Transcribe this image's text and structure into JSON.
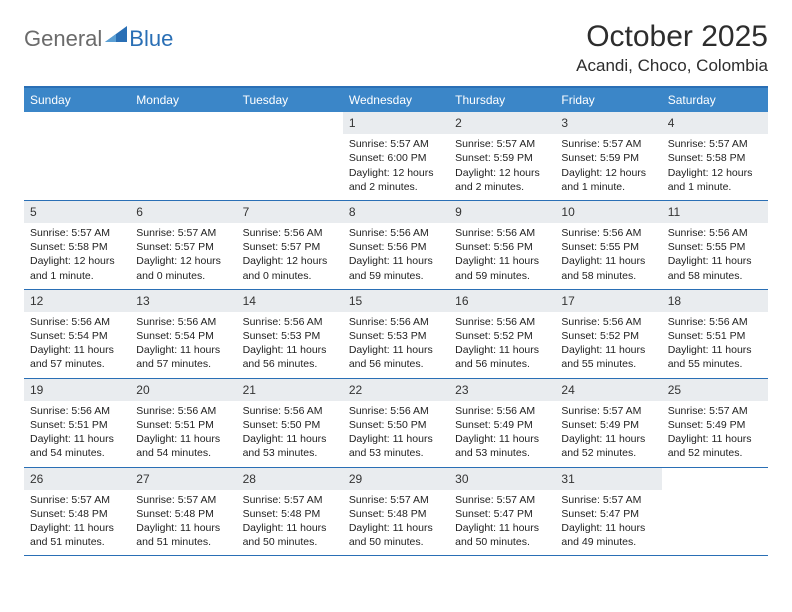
{
  "logo": {
    "general": "General",
    "blue": "Blue"
  },
  "title": "October 2025",
  "location": "Acandi, Choco, Colombia",
  "colors": {
    "header_bg": "#3b86c8",
    "border": "#2a6fb5",
    "daynum_bg": "#e9ecef",
    "text": "#222222"
  },
  "dayHeaders": [
    "Sunday",
    "Monday",
    "Tuesday",
    "Wednesday",
    "Thursday",
    "Friday",
    "Saturday"
  ],
  "weeks": [
    [
      {
        "blank": true
      },
      {
        "blank": true
      },
      {
        "blank": true
      },
      {
        "num": "1",
        "sunrise": "5:57 AM",
        "sunset": "6:00 PM",
        "daylight": "12 hours and 2 minutes."
      },
      {
        "num": "2",
        "sunrise": "5:57 AM",
        "sunset": "5:59 PM",
        "daylight": "12 hours and 2 minutes."
      },
      {
        "num": "3",
        "sunrise": "5:57 AM",
        "sunset": "5:59 PM",
        "daylight": "12 hours and 1 minute."
      },
      {
        "num": "4",
        "sunrise": "5:57 AM",
        "sunset": "5:58 PM",
        "daylight": "12 hours and 1 minute."
      }
    ],
    [
      {
        "num": "5",
        "sunrise": "5:57 AM",
        "sunset": "5:58 PM",
        "daylight": "12 hours and 1 minute."
      },
      {
        "num": "6",
        "sunrise": "5:57 AM",
        "sunset": "5:57 PM",
        "daylight": "12 hours and 0 minutes."
      },
      {
        "num": "7",
        "sunrise": "5:56 AM",
        "sunset": "5:57 PM",
        "daylight": "12 hours and 0 minutes."
      },
      {
        "num": "8",
        "sunrise": "5:56 AM",
        "sunset": "5:56 PM",
        "daylight": "11 hours and 59 minutes."
      },
      {
        "num": "9",
        "sunrise": "5:56 AM",
        "sunset": "5:56 PM",
        "daylight": "11 hours and 59 minutes."
      },
      {
        "num": "10",
        "sunrise": "5:56 AM",
        "sunset": "5:55 PM",
        "daylight": "11 hours and 58 minutes."
      },
      {
        "num": "11",
        "sunrise": "5:56 AM",
        "sunset": "5:55 PM",
        "daylight": "11 hours and 58 minutes."
      }
    ],
    [
      {
        "num": "12",
        "sunrise": "5:56 AM",
        "sunset": "5:54 PM",
        "daylight": "11 hours and 57 minutes."
      },
      {
        "num": "13",
        "sunrise": "5:56 AM",
        "sunset": "5:54 PM",
        "daylight": "11 hours and 57 minutes."
      },
      {
        "num": "14",
        "sunrise": "5:56 AM",
        "sunset": "5:53 PM",
        "daylight": "11 hours and 56 minutes."
      },
      {
        "num": "15",
        "sunrise": "5:56 AM",
        "sunset": "5:53 PM",
        "daylight": "11 hours and 56 minutes."
      },
      {
        "num": "16",
        "sunrise": "5:56 AM",
        "sunset": "5:52 PM",
        "daylight": "11 hours and 56 minutes."
      },
      {
        "num": "17",
        "sunrise": "5:56 AM",
        "sunset": "5:52 PM",
        "daylight": "11 hours and 55 minutes."
      },
      {
        "num": "18",
        "sunrise": "5:56 AM",
        "sunset": "5:51 PM",
        "daylight": "11 hours and 55 minutes."
      }
    ],
    [
      {
        "num": "19",
        "sunrise": "5:56 AM",
        "sunset": "5:51 PM",
        "daylight": "11 hours and 54 minutes."
      },
      {
        "num": "20",
        "sunrise": "5:56 AM",
        "sunset": "5:51 PM",
        "daylight": "11 hours and 54 minutes."
      },
      {
        "num": "21",
        "sunrise": "5:56 AM",
        "sunset": "5:50 PM",
        "daylight": "11 hours and 53 minutes."
      },
      {
        "num": "22",
        "sunrise": "5:56 AM",
        "sunset": "5:50 PM",
        "daylight": "11 hours and 53 minutes."
      },
      {
        "num": "23",
        "sunrise": "5:56 AM",
        "sunset": "5:49 PM",
        "daylight": "11 hours and 53 minutes."
      },
      {
        "num": "24",
        "sunrise": "5:57 AM",
        "sunset": "5:49 PM",
        "daylight": "11 hours and 52 minutes."
      },
      {
        "num": "25",
        "sunrise": "5:57 AM",
        "sunset": "5:49 PM",
        "daylight": "11 hours and 52 minutes."
      }
    ],
    [
      {
        "num": "26",
        "sunrise": "5:57 AM",
        "sunset": "5:48 PM",
        "daylight": "11 hours and 51 minutes."
      },
      {
        "num": "27",
        "sunrise": "5:57 AM",
        "sunset": "5:48 PM",
        "daylight": "11 hours and 51 minutes."
      },
      {
        "num": "28",
        "sunrise": "5:57 AM",
        "sunset": "5:48 PM",
        "daylight": "11 hours and 50 minutes."
      },
      {
        "num": "29",
        "sunrise": "5:57 AM",
        "sunset": "5:48 PM",
        "daylight": "11 hours and 50 minutes."
      },
      {
        "num": "30",
        "sunrise": "5:57 AM",
        "sunset": "5:47 PM",
        "daylight": "11 hours and 50 minutes."
      },
      {
        "num": "31",
        "sunrise": "5:57 AM",
        "sunset": "5:47 PM",
        "daylight": "11 hours and 49 minutes."
      },
      {
        "blank": true
      }
    ]
  ],
  "labels": {
    "sunrise": "Sunrise:",
    "sunset": "Sunset:",
    "daylight": "Daylight:"
  }
}
